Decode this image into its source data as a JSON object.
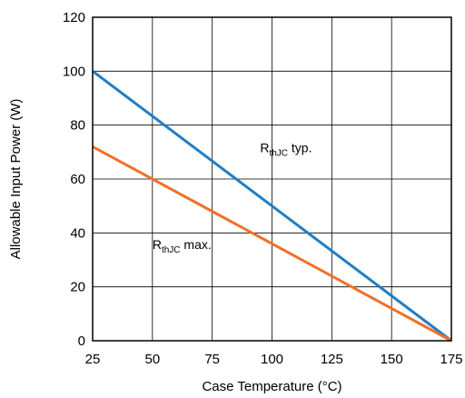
{
  "chart_data": {
    "type": "line",
    "title": "",
    "xlabel": "Case Temperature (°C)",
    "ylabel": "Allowable Input Power (W)",
    "xlim": [
      25,
      175
    ],
    "ylim": [
      0,
      120
    ],
    "xticks": [
      25,
      50,
      75,
      100,
      125,
      150,
      175
    ],
    "yticks": [
      0,
      20,
      40,
      60,
      80,
      100,
      120
    ],
    "grid": true,
    "legend": "none",
    "series": [
      {
        "name": "RthJC typ.",
        "label_main": "R",
        "label_sub": "thJC",
        "label_suffix": " typ.",
        "color": "#1f7fc4",
        "x": [
          25,
          175
        ],
        "y": [
          100,
          0
        ],
        "label_at": [
          95,
          70
        ]
      },
      {
        "name": "RthJC max.",
        "label_main": "R",
        "label_sub": "thJC",
        "label_suffix": " max.",
        "color": "#f07028",
        "x": [
          25,
          175
        ],
        "y": [
          72,
          0
        ],
        "label_at": [
          50,
          34
        ]
      }
    ]
  }
}
